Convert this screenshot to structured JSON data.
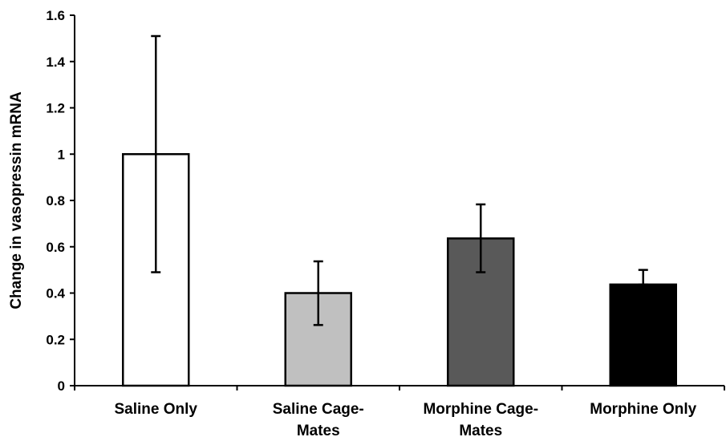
{
  "chart_data": {
    "type": "bar",
    "title": "",
    "xlabel": "",
    "ylabel": "Change in vasopressin mRNA",
    "ylim": [
      0,
      1.6
    ],
    "yticks": [
      "0",
      "0.2",
      "0.4",
      "0.6",
      "0.8",
      "1",
      "1.2",
      "1.4",
      "1.6"
    ],
    "categories": [
      [
        "Saline Only"
      ],
      [
        "Saline Cage-",
        "Mates"
      ],
      [
        "Morphine Cage-",
        "Mates"
      ],
      [
        "Morphine Only"
      ]
    ],
    "values": [
      1.0,
      0.4,
      0.636,
      0.437
    ],
    "error_low": [
      0.49,
      0.262,
      0.49,
      0.437
    ],
    "error_high": [
      1.51,
      0.537,
      0.783,
      0.5
    ],
    "bar_colors": [
      "#ffffff",
      "#c0c0c0",
      "#595959",
      "#000000"
    ],
    "bar_stroke": "#000000",
    "grid": false,
    "legend": "none"
  }
}
